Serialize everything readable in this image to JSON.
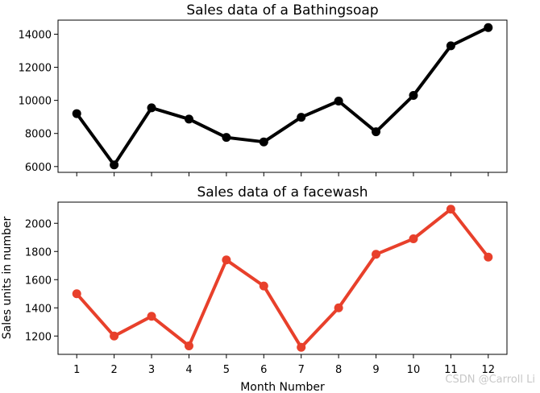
{
  "watermark": "CSDN @Carroll Li",
  "chart_data": [
    {
      "type": "line",
      "title": "Sales data of  a Bathingsoap",
      "xlabel": "",
      "ylabel": "",
      "x": [
        1,
        2,
        3,
        4,
        5,
        6,
        7,
        8,
        9,
        10,
        11,
        12
      ],
      "series": [
        {
          "values": [
            9200,
            6100,
            9550,
            8870,
            7760,
            7490,
            8980,
            9960,
            8100,
            10300,
            13300,
            14400
          ]
        }
      ],
      "xlim": [
        0.5,
        12.5
      ],
      "ylim": [
        5650,
        14850
      ],
      "yticks": [
        6000,
        8000,
        10000,
        12000,
        14000
      ],
      "xtick_labels_visible": false,
      "color": "#000000",
      "marker": "circle",
      "grid": false,
      "legend": "none"
    },
    {
      "type": "line",
      "title": "Sales data of  a facewash",
      "xlabel": "Month Number",
      "ylabel": "Sales units in number",
      "x": [
        1,
        2,
        3,
        4,
        5,
        6,
        7,
        8,
        9,
        10,
        11,
        12
      ],
      "series": [
        {
          "values": [
            1500,
            1200,
            1340,
            1130,
            1740,
            1555,
            1120,
            1400,
            1780,
            1890,
            2100,
            1760
          ]
        }
      ],
      "xlim": [
        0.5,
        12.5
      ],
      "ylim": [
        1070,
        2150
      ],
      "yticks": [
        1200,
        1400,
        1600,
        1800,
        2000
      ],
      "xtick_labels_visible": true,
      "color": "#e8402b",
      "marker": "circle",
      "grid": false,
      "legend": "none"
    }
  ]
}
